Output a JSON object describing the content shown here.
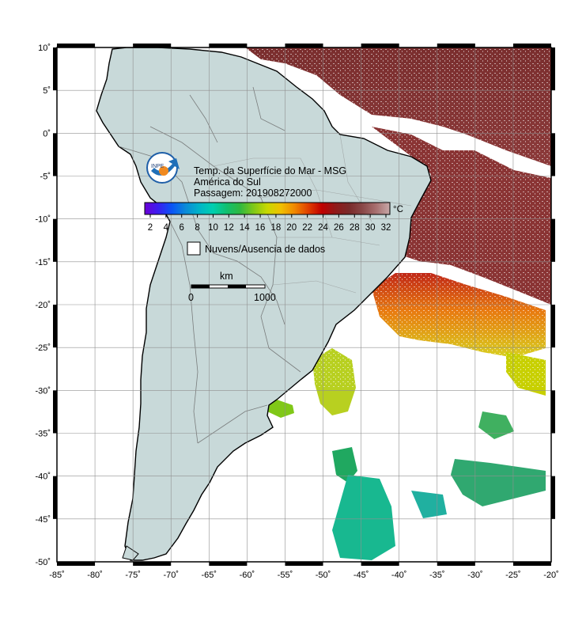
{
  "map": {
    "lon_range": [
      -85,
      -20
    ],
    "lat_range": [
      -50,
      10
    ],
    "lon_ticks": [
      -85,
      -80,
      -75,
      -70,
      -65,
      -60,
      -55,
      -50,
      -45,
      -40,
      -35,
      -30,
      -25,
      -20
    ],
    "lat_ticks": [
      10,
      5,
      0,
      -5,
      -10,
      -15,
      -20,
      -25,
      -30,
      -35,
      -40,
      -45,
      -50
    ],
    "lon_tick_labels": [
      "-85˚",
      "-80˚",
      "-75˚",
      "-70˚",
      "-65˚",
      "-60˚",
      "-55˚",
      "-50˚",
      "-45˚",
      "-40˚",
      "-35˚",
      "-30˚",
      "-25˚",
      "-20˚"
    ],
    "lat_tick_labels": [
      "10˚",
      "5˚",
      "0˚",
      "-5˚",
      "-10˚",
      "-15˚",
      "-20˚",
      "-25˚",
      "-30˚",
      "-35˚",
      "-40˚",
      "-45˚",
      "-50˚"
    ],
    "land_color": "#c8d9d9",
    "grid_color": "#909090"
  },
  "legend": {
    "title_line1": "Temp. da Superfície do Mar - MSG",
    "title_line2": "América do Sul",
    "title_line3": "Passagem: 201908272000",
    "logo_text": "INPE",
    "unit": "°C",
    "colorbar_labels": [
      "2",
      "4",
      "6",
      "8",
      "10",
      "12",
      "14",
      "16",
      "18",
      "20",
      "22",
      "24",
      "26",
      "28",
      "30",
      "32"
    ],
    "colorbar_colors": [
      "#6b00d6",
      "#3a1ef0",
      "#0a55f5",
      "#0a8ad8",
      "#00b4c8",
      "#00cfb0",
      "#10c070",
      "#30b840",
      "#80c818",
      "#c8d800",
      "#f0c000",
      "#f08800",
      "#e04000",
      "#c00000",
      "#901818",
      "#7a2a2a",
      "#8a4848",
      "#a87070",
      "#c8a8a8"
    ],
    "clouds_label": "Nuvens/Ausencia de dados",
    "scale_title": "km",
    "scale_start": "0",
    "scale_end": "1000"
  }
}
